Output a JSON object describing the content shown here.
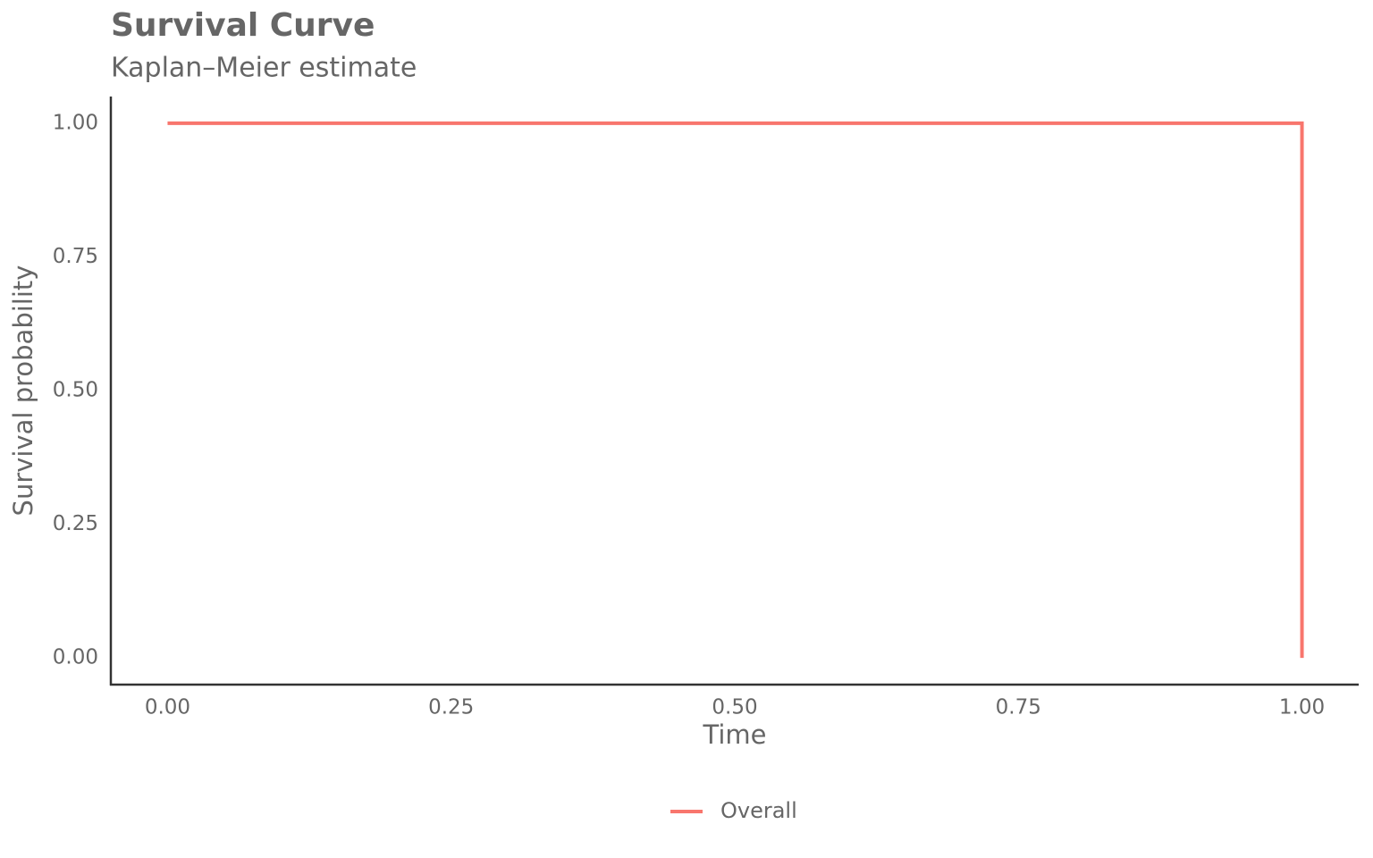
{
  "chart_data": {
    "type": "line",
    "title": "Survival Curve",
    "subtitle": "Kaplan–Meier estimate",
    "x_label": "Time",
    "y_label": "Survival probability",
    "x": [
      0,
      1,
      1
    ],
    "series": [
      {
        "name": "Overall",
        "color": "#f8766d",
        "values": [
          1,
          1,
          0
        ]
      }
    ],
    "xlim": [
      -0.05,
      1.05
    ],
    "ylim": [
      -0.05,
      1.05
    ],
    "xticks": [
      {
        "value": 0,
        "label": "0.00"
      },
      {
        "value": 0.25,
        "label": "0.25"
      },
      {
        "value": 0.5,
        "label": "0.50"
      },
      {
        "value": 0.75,
        "label": "0.75"
      },
      {
        "value": 1,
        "label": "1.00"
      }
    ],
    "yticks": [
      {
        "value": 0,
        "label": "0.00"
      },
      {
        "value": 0.25,
        "label": "0.25"
      },
      {
        "value": 0.5,
        "label": "0.50"
      },
      {
        "value": 0.75,
        "label": "0.75"
      },
      {
        "value": 1,
        "label": "1.00"
      }
    ],
    "grid": false,
    "legend": "bottom"
  }
}
